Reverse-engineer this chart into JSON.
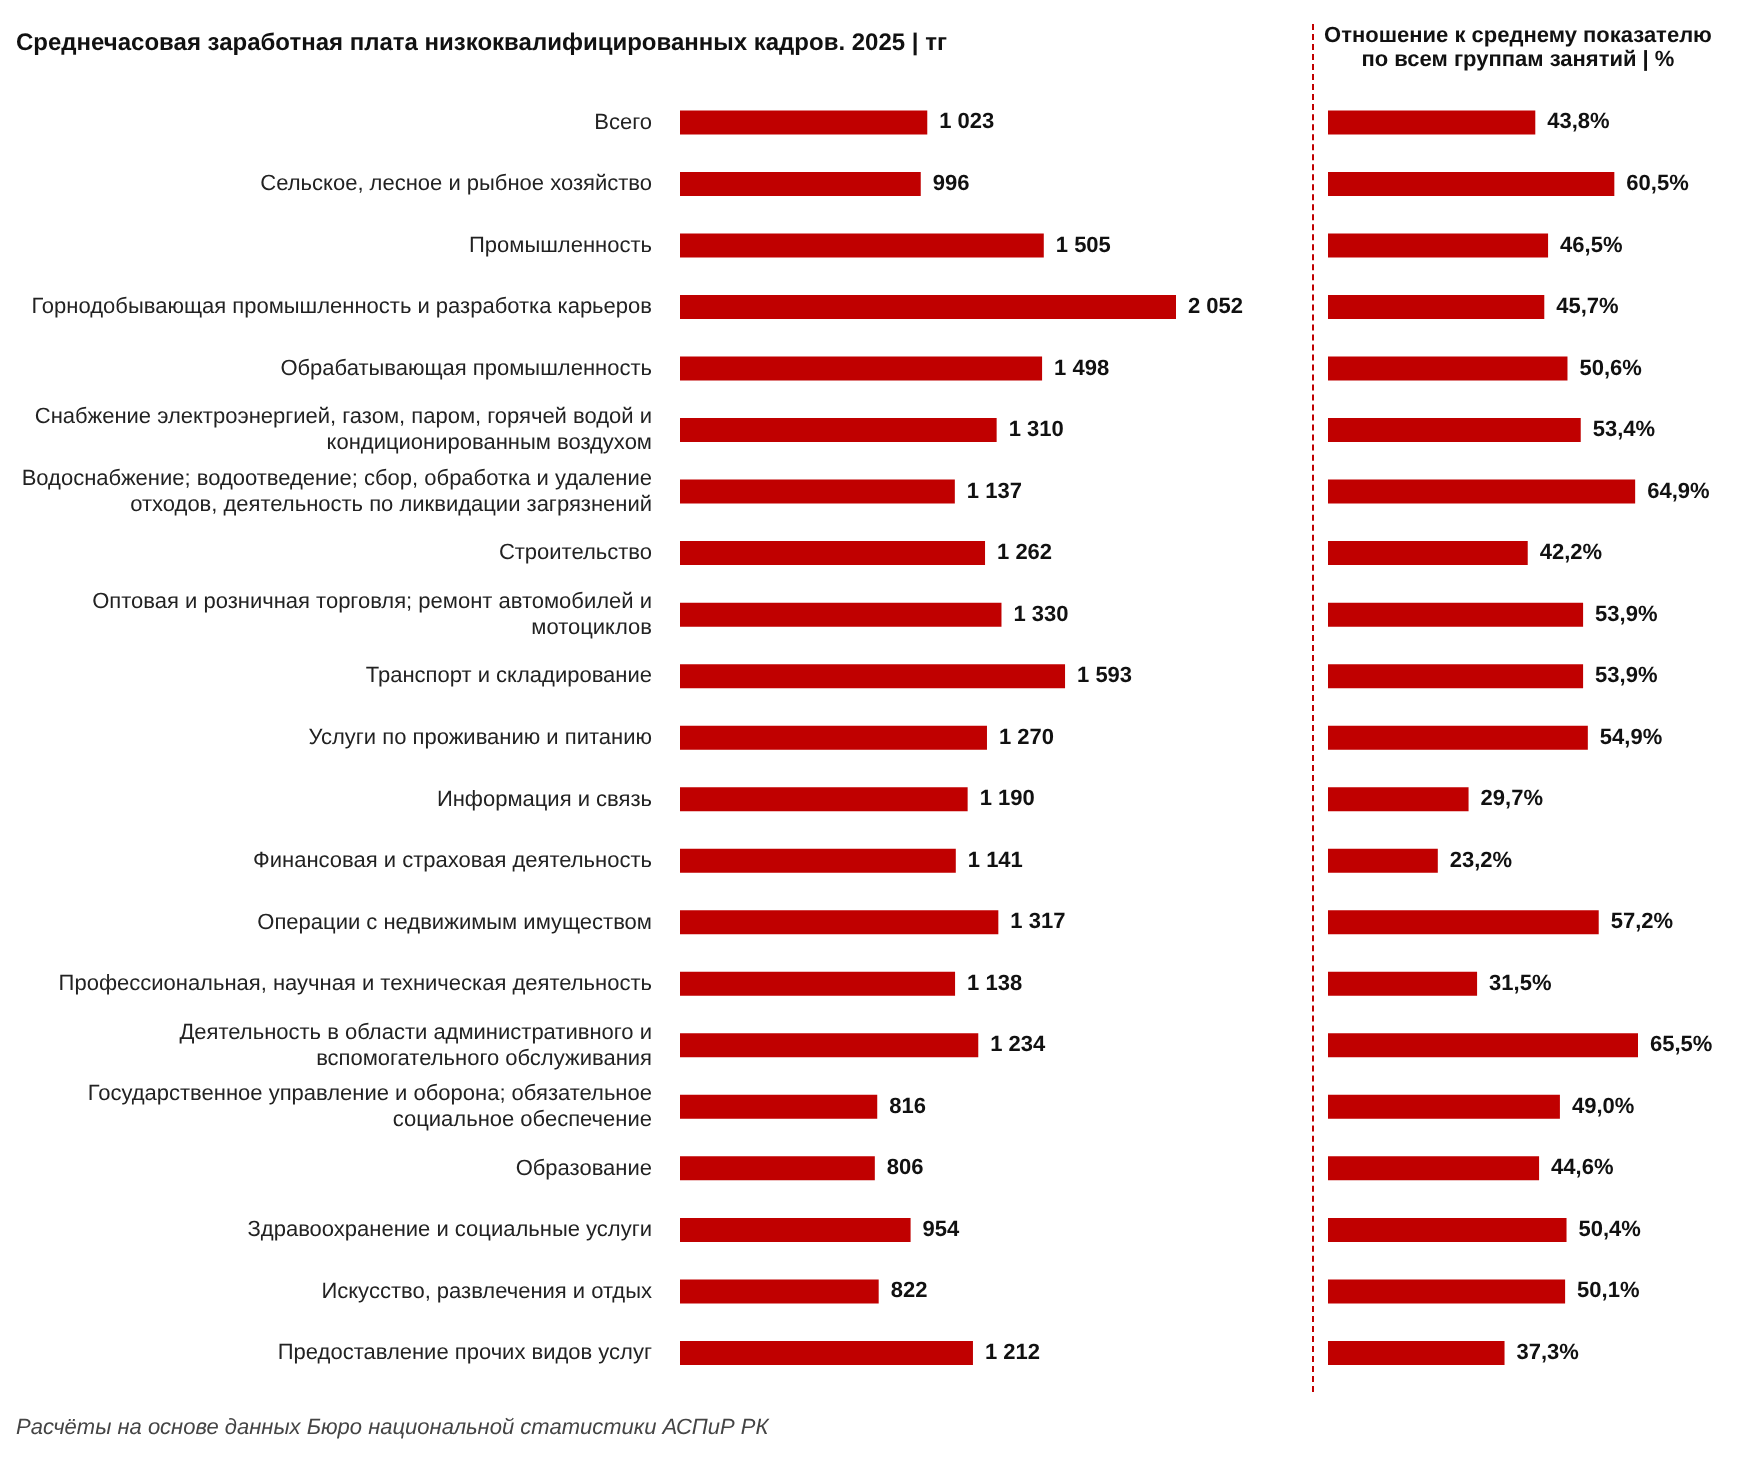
{
  "chart_data": [
    {
      "type": "bar",
      "orientation": "horizontal",
      "title": "Среднечасовая заработная плата низкоквалифицированных кадров. 2025 | тг",
      "categories": [
        "Всего",
        "Сельское, лесное и рыбное хозяйство",
        "Промышленность",
        "Горнодобывающая промышленность и разработка карьеров",
        "Обрабатывающая промышленность",
        "Снабжение электроэнергией, газом, паром, горячей водой и кондиционированным воздухом",
        "Водоснабжение; водоотведение; сбор, обработка и удаление отходов, деятельность по ликвидации загрязнений",
        "Строительство",
        "Оптовая и розничная торговля; ремонт автомобилей и мотоциклов",
        "Транспорт и складирование",
        "Услуги по проживанию и питанию",
        "Информация и связь",
        "Финансовая и страховая деятельность",
        "Операции с недвижимым имуществом",
        "Профессиональная, научная и техническая деятельность",
        "Деятельность в области административного и вспомогательного обслуживания",
        "Государственное управление и оборона; обязательное социальное обеспечение",
        "Образование",
        "Здравоохранение и социальные услуги",
        "Искусство, развлечения и отдых",
        "Предоставление прочих видов услуг"
      ],
      "values": [
        1023,
        996,
        1505,
        2052,
        1498,
        1310,
        1137,
        1262,
        1330,
        1593,
        1270,
        1190,
        1141,
        1317,
        1138,
        1234,
        816,
        806,
        954,
        822,
        1212
      ],
      "value_labels": [
        "1 023",
        "996",
        "1 505",
        "2 052",
        "1 498",
        "1 310",
        "1 137",
        "1 262",
        "1 330",
        "1 593",
        "1 270",
        "1 190",
        "1 141",
        "1 317",
        "1 138",
        "1 234",
        "816",
        "806",
        "954",
        "822",
        "1 212"
      ],
      "color": "#c00000",
      "tick_labels": "y",
      "annotations": [
        "Расчёты на основе данных Бюро национальной статистики АСПиР РК"
      ]
    },
    {
      "type": "bar",
      "orientation": "horizontal",
      "title": "Отношение к среднему показателю по всем группам занятий | %",
      "categories": [
        null,
        null,
        null,
        null,
        null,
        null,
        null,
        null,
        null,
        null,
        null,
        null,
        null,
        null,
        null,
        null,
        null,
        null,
        null,
        null,
        null
      ],
      "values": [
        43.8,
        60.5,
        46.5,
        45.7,
        50.6,
        53.4,
        64.9,
        42.2,
        53.9,
        53.9,
        54.9,
        29.7,
        23.2,
        57.2,
        31.5,
        65.5,
        49.0,
        44.6,
        50.4,
        50.1,
        37.3
      ],
      "value_labels": [
        "43,8%",
        "60,5%",
        "46,5%",
        "45,7%",
        "50,6%",
        "53,4%",
        "64,9%",
        "42,2%",
        "53,9%",
        "53,9%",
        "54,9%",
        "29,7%",
        "23,2%",
        "57,2%",
        "31,5%",
        "65,5%",
        "49,0%",
        "44,6%",
        "50,4%",
        "50,1%",
        "37,3%"
      ],
      "color": "#c00000",
      "tick_labels": false
    }
  ]
}
